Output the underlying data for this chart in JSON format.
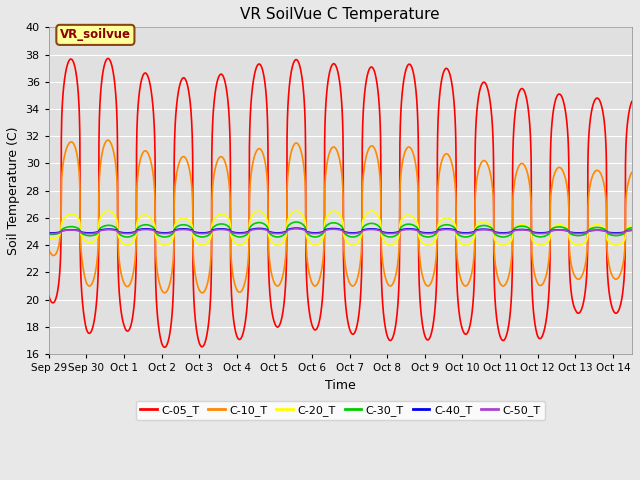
{
  "title": "VR SoilVue C Temperature",
  "ylabel": "Soil Temperature (C)",
  "xlabel": "Time",
  "ylim": [
    16,
    40
  ],
  "yticks": [
    16,
    18,
    20,
    22,
    24,
    26,
    28,
    30,
    32,
    34,
    36,
    38,
    40
  ],
  "num_days": 15.5,
  "x_tick_labels": [
    "Sep 29",
    "Sep 30",
    "Oct 1",
    "Oct 2",
    "Oct 3",
    "Oct 4",
    "Oct 5",
    "Oct 6",
    "Oct 7",
    "Oct 8",
    "Oct 9",
    "Oct 10",
    "Oct 11",
    "Oct 12",
    "Oct 13",
    "Oct 14"
  ],
  "series": {
    "C-05_T": {
      "color": "#ff0000",
      "peaks": [
        37.2,
        38.0,
        37.5,
        36.0,
        36.5,
        36.6,
        37.8,
        37.5,
        37.2,
        37.0,
        37.5,
        36.6,
        35.5,
        35.5,
        34.8
      ],
      "troughs": [
        20.0,
        17.5,
        17.8,
        16.5,
        16.5,
        17.0,
        18.0,
        17.8,
        17.5,
        17.0,
        17.0,
        17.5,
        17.0,
        17.0,
        19.0
      ],
      "peak_sharpness": 4.0
    },
    "C-10_T": {
      "color": "#ff8800",
      "peaks": [
        31.0,
        32.0,
        31.5,
        30.5,
        30.5,
        30.5,
        31.5,
        31.5,
        31.0,
        31.5,
        31.0,
        30.5,
        30.0,
        30.0,
        29.5
      ],
      "troughs": [
        23.5,
        21.0,
        21.0,
        20.5,
        20.5,
        20.5,
        21.0,
        21.0,
        21.0,
        21.0,
        21.0,
        21.0,
        21.0,
        21.0,
        21.5
      ],
      "peak_sharpness": 3.0
    },
    "C-20_T": {
      "color": "#ffff00",
      "peaks": [
        26.0,
        26.5,
        26.5,
        26.0,
        26.0,
        26.5,
        26.5,
        26.5,
        26.5,
        26.5,
        26.0,
        26.0,
        25.5,
        25.5,
        25.5
      ],
      "troughs": [
        24.5,
        24.2,
        24.0,
        24.0,
        24.0,
        24.0,
        24.0,
        24.0,
        24.0,
        24.0,
        24.0,
        24.0,
        24.0,
        24.0,
        24.0
      ],
      "peak_sharpness": 2.5
    },
    "C-30_T": {
      "color": "#00cc00",
      "peaks": [
        25.3,
        25.4,
        25.5,
        25.5,
        25.5,
        25.6,
        25.7,
        25.7,
        25.6,
        25.6,
        25.5,
        25.5,
        25.4,
        25.4,
        25.3
      ],
      "troughs": [
        24.8,
        24.7,
        24.6,
        24.6,
        24.6,
        24.6,
        24.6,
        24.6,
        24.6,
        24.6,
        24.6,
        24.6,
        24.6,
        24.6,
        24.7
      ],
      "peak_sharpness": 2.0
    },
    "C-40_T": {
      "color": "#0000ee",
      "peaks": [
        25.1,
        25.15,
        25.2,
        25.2,
        25.2,
        25.2,
        25.25,
        25.25,
        25.2,
        25.2,
        25.2,
        25.2,
        25.15,
        25.15,
        25.1
      ],
      "troughs": [
        24.9,
        24.9,
        24.9,
        24.9,
        24.9,
        24.9,
        24.9,
        24.9,
        24.9,
        24.9,
        24.9,
        24.9,
        24.9,
        24.9,
        24.9
      ],
      "peak_sharpness": 2.0
    },
    "C-50_T": {
      "color": "#aa44cc",
      "peaks": [
        25.1,
        25.12,
        25.15,
        25.15,
        25.15,
        25.15,
        25.2,
        25.2,
        25.15,
        25.15,
        25.15,
        25.15,
        25.12,
        25.12,
        25.1
      ],
      "troughs": [
        24.85,
        24.85,
        24.85,
        24.85,
        24.85,
        24.85,
        24.85,
        24.85,
        24.85,
        24.85,
        24.85,
        24.85,
        24.85,
        24.85,
        24.85
      ],
      "peak_sharpness": 2.0
    }
  },
  "annotation_text": "VR_soilvue",
  "bg_color": "#e8e8e8",
  "plot_bg_color": "#e0e0e0",
  "grid_color": "#ffffff",
  "linewidth": 1.2,
  "figsize": [
    6.4,
    4.8
  ],
  "dpi": 100
}
